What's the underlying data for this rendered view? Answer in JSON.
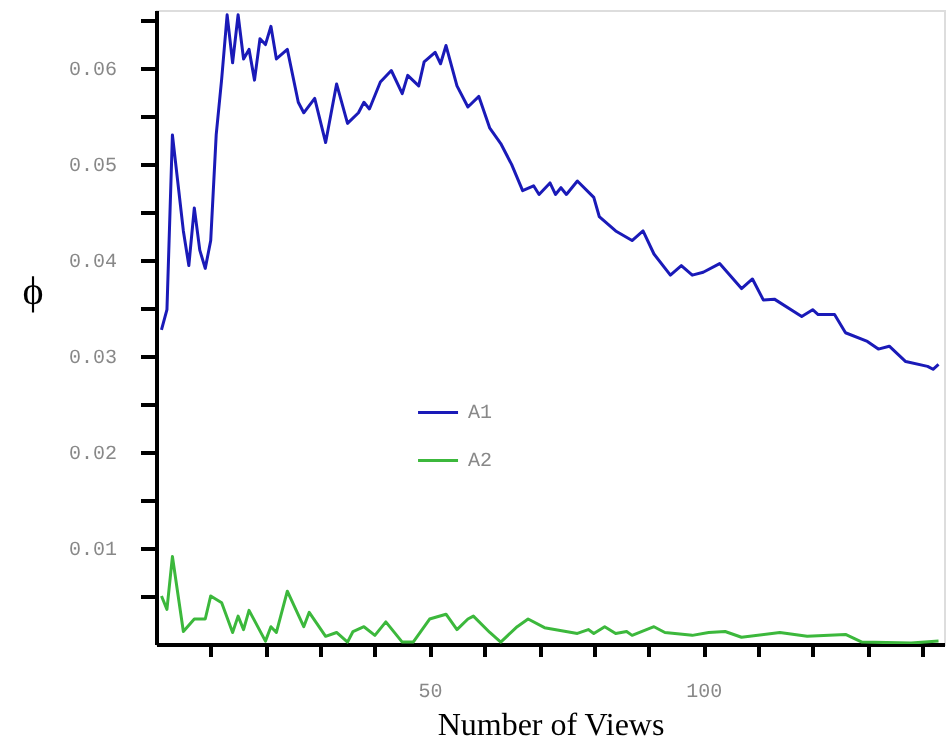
{
  "chart_data": {
    "type": "line",
    "xlabel": "Number of Views",
    "ylabel": "ϕ",
    "xlim": [
      0,
      144
    ],
    "ylim": [
      0,
      0.066
    ],
    "xticks": [
      {
        "value": 10,
        "label": null
      },
      {
        "value": 20,
        "label": null
      },
      {
        "value": 30,
        "label": null
      },
      {
        "value": 40,
        "label": null
      },
      50,
      {
        "value": 60,
        "label": null
      },
      {
        "value": 70,
        "label": null
      },
      {
        "value": 80,
        "label": null
      },
      {
        "value": 90,
        "label": null
      },
      100,
      {
        "value": 110,
        "label": null
      },
      {
        "value": 120,
        "label": null
      },
      {
        "value": 130,
        "label": null
      },
      {
        "value": 140,
        "label": null
      }
    ],
    "yticks": [
      {
        "value": 0.005,
        "label": null
      },
      0.01,
      {
        "value": 0.015,
        "label": null
      },
      0.02,
      {
        "value": 0.025,
        "label": null
      },
      0.03,
      {
        "value": 0.035,
        "label": null
      },
      0.04,
      {
        "value": 0.045,
        "label": null
      },
      0.05,
      {
        "value": 0.055,
        "label": null
      },
      0.06,
      {
        "value": 0.065,
        "label": null
      }
    ],
    "grid": false,
    "legend": "center",
    "marker": "none",
    "line_style": "solid",
    "series": [
      {
        "name": "A1",
        "color": "#1a1ab8",
        "x": [
          1,
          2,
          3,
          5,
          6,
          7,
          8,
          9,
          10,
          11,
          12,
          13,
          14,
          15,
          16,
          17,
          18,
          19,
          20,
          21,
          22,
          24,
          26,
          27,
          29,
          31,
          33,
          35,
          37,
          38,
          39,
          41,
          43,
          45,
          46,
          48,
          49,
          51,
          52,
          53,
          55,
          57,
          59,
          61,
          63,
          65,
          67,
          69,
          70,
          72,
          73,
          74,
          75,
          77,
          80,
          81,
          84,
          87,
          89,
          91,
          94,
          96,
          98,
          100,
          103,
          107,
          109,
          111,
          113,
          118,
          120,
          121,
          124,
          126,
          130,
          132,
          134,
          137,
          141,
          142,
          143
        ],
        "values": [
          0.0327,
          0.0348,
          0.053,
          0.043,
          0.0394,
          0.0454,
          0.041,
          0.0391,
          0.042,
          0.053,
          0.0588,
          0.0655,
          0.0605,
          0.0655,
          0.0609,
          0.0619,
          0.0587,
          0.063,
          0.0624,
          0.0643,
          0.0609,
          0.0619,
          0.0564,
          0.0553,
          0.0568,
          0.0522,
          0.0583,
          0.0542,
          0.0553,
          0.0564,
          0.0557,
          0.0585,
          0.0597,
          0.0573,
          0.0592,
          0.0581,
          0.0606,
          0.0616,
          0.0604,
          0.0623,
          0.0581,
          0.0559,
          0.057,
          0.0537,
          0.0521,
          0.0499,
          0.0472,
          0.0477,
          0.0468,
          0.048,
          0.0468,
          0.0475,
          0.0468,
          0.0482,
          0.0465,
          0.0445,
          0.043,
          0.042,
          0.043,
          0.0406,
          0.0384,
          0.0394,
          0.0384,
          0.0387,
          0.0396,
          0.037,
          0.038,
          0.0358,
          0.0359,
          0.0341,
          0.0348,
          0.0343,
          0.0343,
          0.0324,
          0.0315,
          0.0307,
          0.031,
          0.0294,
          0.0289,
          0.0286,
          0.0291
        ]
      },
      {
        "name": "A2",
        "color": "#3cb83c",
        "x": [
          1,
          2,
          3,
          5,
          7,
          9,
          10,
          12,
          14,
          15,
          16,
          17,
          20,
          21,
          22,
          24,
          27,
          28,
          31,
          33,
          35,
          36,
          38,
          40,
          42,
          45,
          47,
          50,
          53,
          55,
          57,
          58,
          61,
          63,
          66,
          68,
          71,
          77,
          79,
          80,
          82,
          84,
          86,
          87,
          91,
          93,
          98,
          101,
          104,
          107,
          114,
          119,
          126,
          129,
          138,
          143
        ],
        "values": [
          0.005,
          0.0036,
          0.0091,
          0.0013,
          0.0026,
          0.0026,
          0.005,
          0.0043,
          0.0012,
          0.0029,
          0.0015,
          0.0035,
          0.0003,
          0.0018,
          0.0012,
          0.0055,
          0.0018,
          0.0033,
          0.0008,
          0.0012,
          0.0002,
          0.0013,
          0.0018,
          0.0009,
          0.0023,
          0.0002,
          0.0002,
          0.0026,
          0.0031,
          0.0015,
          0.0026,
          0.0029,
          0.0012,
          0.0002,
          0.0018,
          0.0026,
          0.0017,
          0.0011,
          0.0015,
          0.0011,
          0.0018,
          0.0011,
          0.0013,
          0.0009,
          0.0018,
          0.0012,
          0.0009,
          0.0012,
          0.0013,
          0.0007,
          0.0012,
          0.0008,
          0.001,
          0.0002,
          0.0001,
          0.0003
        ]
      }
    ]
  }
}
